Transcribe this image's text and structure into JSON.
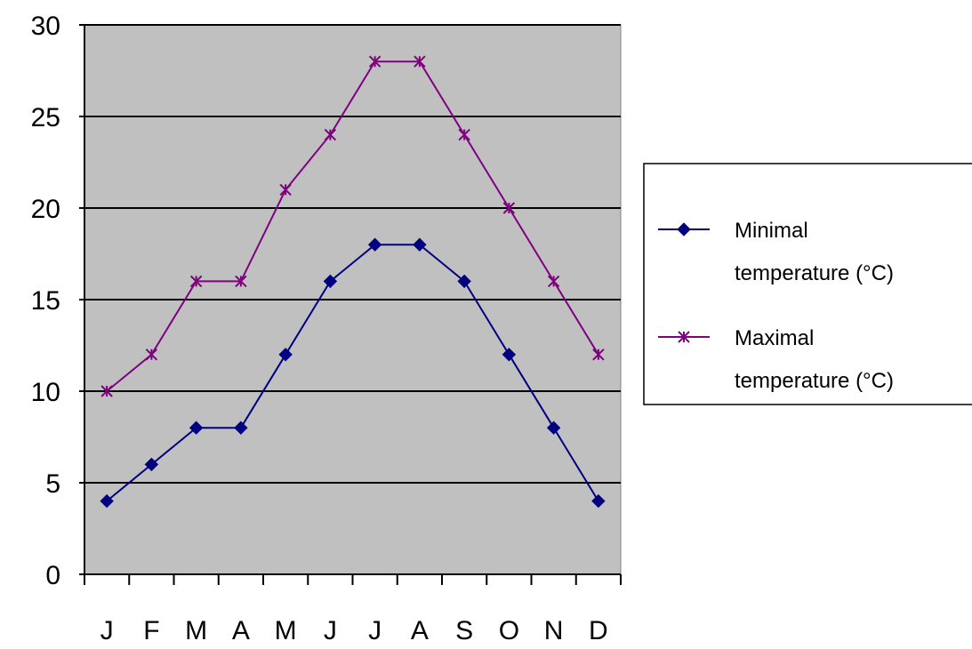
{
  "chart_data": {
    "type": "line",
    "title": "",
    "xlabel": "",
    "ylabel": "",
    "categories": [
      "J",
      "F",
      "M",
      "A",
      "M",
      "J",
      "J",
      "A",
      "S",
      "O",
      "N",
      "D"
    ],
    "ylim": [
      0,
      30
    ],
    "yticks": [
      "0",
      "5",
      "10",
      "15",
      "20",
      "25",
      "30"
    ],
    "grid": true,
    "legend_position": "right",
    "plot_background": "#C0C0C0",
    "series": [
      {
        "name": "Minimal temperature (°C)",
        "legend_lines": [
          "Minimal",
          "temperature (°C)"
        ],
        "color": "#000080",
        "marker": "diamond",
        "values": [
          4,
          6,
          8,
          8,
          12,
          16,
          18,
          18,
          16,
          12,
          8,
          4
        ]
      },
      {
        "name": "Maximal temperature (°C)",
        "legend_lines": [
          "Maximal",
          "temperature (°C)"
        ],
        "color": "#800080",
        "marker": "asterisk",
        "values": [
          10,
          12,
          16,
          16,
          21,
          24,
          28,
          28,
          24,
          20,
          16,
          12
        ]
      }
    ]
  }
}
